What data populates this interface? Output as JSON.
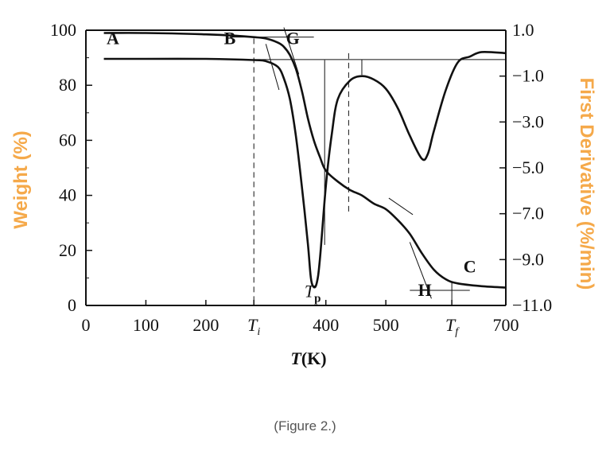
{
  "caption": "(Figure 2.)",
  "chart_data": {
    "type": "line",
    "xlabel": "T(K)",
    "ylabel_left": "Weight (%)",
    "ylabel_right": "First Derivative (%/min)",
    "xlim": [
      0,
      700
    ],
    "ylim_left": [
      0,
      100
    ],
    "ylim_right": [
      -11.0,
      1.0
    ],
    "x_ticks": [
      {
        "value": 0,
        "label": "0"
      },
      {
        "value": 100,
        "label": "100"
      },
      {
        "value": 200,
        "label": "200"
      },
      {
        "value": 280,
        "label": "T_i"
      },
      {
        "value": 400,
        "label": "400"
      },
      {
        "value": 500,
        "label": "500"
      },
      {
        "value": 610,
        "label": "T_f"
      },
      {
        "value": 700,
        "label": "700"
      }
    ],
    "y_left_ticks": [
      0,
      20,
      40,
      60,
      80,
      100
    ],
    "y_right_ticks": [
      "1.0",
      "−1.0",
      "−3.0",
      "−5.0",
      "−7.0",
      "−9.0",
      "−11.0"
    ],
    "series": [
      {
        "role": "weight",
        "x": [
          30,
          100,
          200,
          250,
          280,
          300,
          320,
          330,
          340,
          350,
          360,
          370,
          380,
          390,
          400,
          420,
          440,
          460,
          480,
          500,
          520,
          540,
          560,
          580,
          600,
          620,
          660,
          700
        ],
        "y": [
          99,
          99,
          98.5,
          98,
          97.5,
          97,
          95.5,
          94,
          91,
          86,
          78,
          68,
          60,
          54,
          49,
          45,
          42,
          40,
          37,
          35,
          31,
          26,
          19,
          13,
          9.5,
          8,
          7,
          6.5
        ]
      },
      {
        "role": "derivative",
        "x": [
          30,
          100,
          200,
          280,
          300,
          320,
          330,
          340,
          350,
          360,
          370,
          375,
          380,
          385,
          390,
          400,
          410,
          420,
          440,
          460,
          480,
          500,
          520,
          540,
          560,
          570,
          580,
          600,
          620,
          640,
          660,
          700
        ],
        "y": [
          -0.25,
          -0.25,
          -0.25,
          -0.3,
          -0.35,
          -0.6,
          -1.1,
          -2.0,
          -3.6,
          -5.8,
          -8.3,
          -9.8,
          -10.2,
          -10.0,
          -9.0,
          -5.8,
          -3.5,
          -2.0,
          -1.2,
          -1.0,
          -1.15,
          -1.55,
          -2.4,
          -3.6,
          -4.6,
          -4.4,
          -3.4,
          -1.6,
          -0.4,
          -0.15,
          0.05,
          0.0
        ]
      }
    ],
    "annotations": [
      {
        "text": "A",
        "x": 45,
        "y": 95
      },
      {
        "text": "B",
        "x": 240,
        "y": 95
      },
      {
        "text": "G",
        "x": 345,
        "y": 95
      },
      {
        "text": "T_p",
        "x": 378,
        "y": 3
      },
      {
        "text": "H",
        "x": 565,
        "y": 3.5
      },
      {
        "text": "C",
        "x": 640,
        "y": 12
      }
    ]
  }
}
